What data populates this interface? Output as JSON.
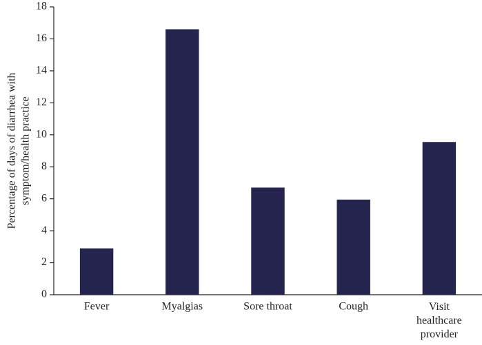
{
  "chart_data": {
    "type": "bar",
    "y_label": [
      "Percentage of days of diarrhea with",
      "symptom/health practice"
    ],
    "categories": [
      "Fever",
      "Myalgias",
      "Sore throat",
      "Cough",
      "Visit healthcare provider"
    ],
    "values": [
      2.9,
      16.6,
      6.7,
      5.95,
      9.55
    ],
    "color": "#25244f",
    "ylim": [
      0,
      18
    ],
    "yticks": [
      0,
      2,
      4,
      6,
      8,
      10,
      12,
      14,
      16,
      18
    ],
    "grid": false
  }
}
